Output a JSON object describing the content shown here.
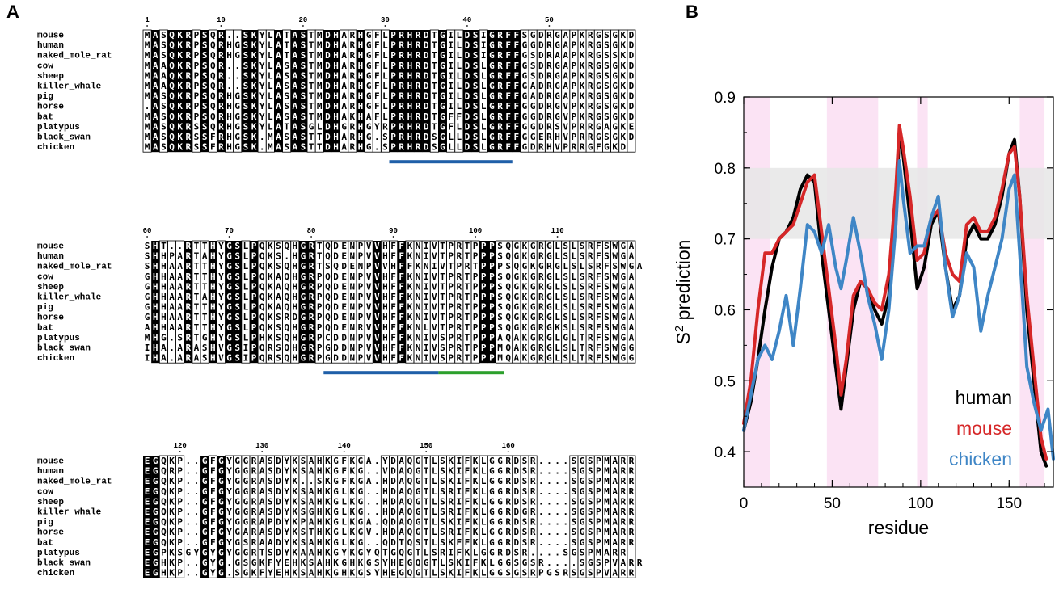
{
  "panel_a_label": "A",
  "panel_b_label": "B",
  "species": [
    "mouse",
    "human",
    "naked_mole_rat",
    "cow",
    "sheep",
    "killer_whale",
    "pig",
    "horse",
    "bat",
    "platypus",
    "black_swan",
    "chicken"
  ],
  "blocks": [
    {
      "ruler": [
        {
          "col": 0,
          "label": "1"
        },
        {
          "col": 9,
          "label": "10"
        },
        {
          "col": 19,
          "label": "20"
        },
        {
          "col": 29,
          "label": "30"
        },
        {
          "col": 39,
          "label": "40"
        },
        {
          "col": 49,
          "label": "50"
        }
      ],
      "rows": [
        "MASQKRPSQR..SKYLATASTMDHARHGFLPRHRDTGILDSIGRFFSGDRGAPKRGSGKD",
        "MASQKRPSQRHGSKYLATASTMDHARHGFLPRHRDTGILDSIGRFFGGDRGAPKRGSGKD",
        "MASQKRPSQRHGSKYLATASTMDHARHGFLPRHRDTGILDSIGRFFGSDRAAPKRGSSKD",
        "MAAQKRPSQR..SKYLASASTMDHARHGFLPRHRDTGILDSLGRFFGSDRGAPKRGSGKD",
        "MAAQKRPSQR..SKYLASASTMDHARHGFLPRHRDTGILDSLGRFFGSDRGAPKRGSGKD",
        "MAAQKRPSQR..SKYLASASTMDHARHGFLPRHRDTGILDSLGRFFGADRGAPKRGSGKD",
        "MASQKRPSQRHGSKYLASASTMDHARHGFLPRHRDTGILDSLGRFFGADRGAPKRGSGKD",
        ".ASQKRPSQRHGSKYLASASTMDHARHGFLPRHRDTGILDSLGRFFGGDRGVPKRGSGKD",
        "MASQKRPSQRHGSKYLASASTMDHAKHAFLPRHRDTGFFDSLGRFFGGDRGVPKRGSGKD",
        "MASQKRSSQRHGSKYLATASGLDHGRHGYRPRHRDTGFLDSLGRFFGGDRSVPRRGAGKE",
        "MASQKRSSFRHGSK.MASASTTDHARHG.SPRHRDSGLLDSLGRFFGGERHVPRRGSGKD",
        "MASQKRSSFRHGSK.MASASTTDHARHG.SPRHRDSGLLDSLGRFFGDRHVPRRGFGKD"
      ],
      "bars": [
        {
          "start": 30,
          "end": 44,
          "color": "#1f5fa8"
        }
      ]
    },
    {
      "ruler": [
        {
          "col": 0,
          "label": "60"
        },
        {
          "col": 10,
          "label": "70"
        },
        {
          "col": 20,
          "label": "80"
        },
        {
          "col": 30,
          "label": "90"
        },
        {
          "col": 40,
          "label": "100"
        },
        {
          "col": 50,
          "label": "110"
        }
      ],
      "rows": [
        "SHT..RTTHYGSLPQKSQHGRTQDENPVVHFFKNIVTPRTPPPSQGKGRGLSLSRFSWGA",
        "SHHPARTAHYGSLPQKS.HGRTQDENPVVHFFKNIVTPRTPPPSQGKGRGLSLSRFSWGA",
        "SHHAARTTHYGSLPQKSQHGRTSQDENPVVHFFKNIVTPRTPPPSQGKGRGLSLSRFSWGA",
        "GHHAARTTHYGSLPQKAQHGRPQDENPVVHFFKNIVTPRTPPPSQGKGRGLSLSRFSWGA",
        "GHHAARTTHYGSLPQKAQHGRPQDENPVVHFFKNIVTPRTPPPSQGKGRGLSLSRFSWGA",
        "GHHAARTAHYGSLPQKAQHGRPQDENPVVHFFKNIVTPRTPPPSQGKGRGLSLSRFSWGA",
        "GHHAARTTHYGSLPQKAQHGRPQDENPVVHFFKNIVTPRTPPPSQGKGRGLSLSRFSWGA",
        "GHHAARTTHYGSLPQKSRDGRPQDENPVVHFFKNIVTPRTPPPSQGKGRGLSLSRFSWGA",
        "AHHAARTTHYGSLPQKSQHGRPQDENRVVHFFKNLVTPRTPPPSQGKGRGKSLSRFSWGA",
        "MHG.SRTGHYGSLPHKSQHGRPCDDNPVVHFFKNIVSPRTPPPAQAKGRGLGLTRFSWGA",
        "IHA.ARASHVGSIPQRSQHGRPGDDNPVVHFFKNIVSPRTPPPMQAKGRGLSLTRFSWGG",
        "IHA.ARASHVGSIPQRSQHGRPGDDNPVVHFFKNIVSPRTPPPMQAKGRGLSLTRFSWGG"
      ],
      "bars": [
        {
          "start": 22,
          "end": 35,
          "color": "#1f5fa8"
        },
        {
          "start": 36,
          "end": 43,
          "color": "#2ca02c"
        }
      ]
    },
    {
      "ruler": [
        {
          "col": 4,
          "label": "120"
        },
        {
          "col": 14,
          "label": "130"
        },
        {
          "col": 24,
          "label": "140"
        },
        {
          "col": 34,
          "label": "150"
        },
        {
          "col": 44,
          "label": "160"
        }
      ],
      "rows": [
        "EGQKP..GFGYGGRASDYKSAHKGFKGA.YDAQGTLSKIFKLGGRDSR....SGSPMARR",
        "EGQRP..GFGYGGRASDYKSAHKGFKG..VDAQGTLSKIFKLGGRDSR....SGSPMARR",
        "EGQKP..GFGYGGRASDYK..SKGFKGA.HDAQGTLSKIFKLGGRDSR....SGSPMARR",
        "EGQKP..GFGYGGRASDYKSAHKGLKG..HDAQGTLSRIFKLGGRDSR....SGSPMARR",
        "EGQKP..GFGYGGRASDYKSAHKGLKG..HDAQGTLSRIFKLGGRDSR....SGSPMARR",
        "EGQKP..GFGYGGRASDYKSGHKGLKG..HDAQGTLSRIFKLGGRDGR....SGSPMARR",
        "EGQKP..GFGYGGRAPDYKPAHKGLKGA.QDAQGTLSKIFKLGGRDSR....SGSPMARR",
        "EGQKP..GFGYGARASDYKSTHKGLKGV.HDAQGTLSRIFKLGGRDSR....SGSPMARR",
        "EGQKP..GFGYGSRAADYKSAHKGLKG..QDTQSTLSKFFKLGGRDSR....SGSPMARR",
        "EGPKSGYGYGYGGRTSDYKAAHKGYKGYQTGQGTLSRIFKLGGRDSR....SGSPMARR",
        "EGHKP..GYG.GSGKFYEHKSAHKGHKGSYHEGQGTLSKIFKLGGSGSR....SGSPVARR",
        "EGHKP..GYG.SGKFYEHKSAHKGHKGSYHEGQGTLSKIFKLGGSGSRPGSRSGSPVARR"
      ],
      "bars": []
    }
  ],
  "chart_data": {
    "type": "line",
    "title": "",
    "xlabel": "residue",
    "ylabel": "S² prediction",
    "ylabel_main": "S",
    "ylabel_sup": "2",
    "ylabel_rest": " prediction",
    "xlim": [
      0,
      175
    ],
    "ylim": [
      0.35,
      0.9
    ],
    "xticks": [
      0,
      50,
      100,
      150
    ],
    "xtick_labels": [
      "0",
      "50",
      "100",
      "150"
    ],
    "yticks": [
      0.4,
      0.5,
      0.6,
      0.7,
      0.8,
      0.9
    ],
    "ytick_labels": [
      "0.4",
      "0.5",
      "0.6",
      "0.7",
      "0.8",
      "0.9"
    ],
    "shaded_band": {
      "y0": 0.7,
      "y1": 0.8,
      "color": "#e6e6e6"
    },
    "highlight_regions": [
      [
        0,
        15
      ],
      [
        47,
        76
      ],
      [
        98,
        104
      ],
      [
        156,
        170
      ]
    ],
    "highlight_color": "#fbe3f4",
    "legend_position": "lower-right",
    "series": [
      {
        "name": "human",
        "color": "#000000",
        "x": [
          0,
          4,
          8,
          12,
          16,
          20,
          24,
          28,
          32,
          36,
          40,
          44,
          48,
          52,
          55,
          58,
          62,
          66,
          70,
          74,
          78,
          82,
          86,
          88,
          90,
          94,
          98,
          102,
          106,
          110,
          114,
          118,
          122,
          126,
          130,
          134,
          138,
          142,
          146,
          150,
          153,
          156,
          160,
          164,
          168,
          171
        ],
        "y": [
          0.43,
          0.47,
          0.53,
          0.6,
          0.66,
          0.7,
          0.71,
          0.73,
          0.77,
          0.79,
          0.78,
          0.68,
          0.6,
          0.52,
          0.46,
          0.52,
          0.6,
          0.64,
          0.63,
          0.6,
          0.58,
          0.62,
          0.74,
          0.85,
          0.82,
          0.73,
          0.63,
          0.66,
          0.72,
          0.74,
          0.66,
          0.6,
          0.62,
          0.7,
          0.72,
          0.7,
          0.7,
          0.72,
          0.76,
          0.82,
          0.84,
          0.76,
          0.6,
          0.5,
          0.4,
          0.38
        ]
      },
      {
        "name": "mouse",
        "color": "#d62728",
        "x": [
          0,
          4,
          8,
          12,
          16,
          20,
          24,
          28,
          32,
          36,
          40,
          44,
          48,
          52,
          55,
          58,
          62,
          66,
          70,
          74,
          78,
          82,
          86,
          88,
          90,
          94,
          98,
          102,
          106,
          110,
          114,
          118,
          122,
          126,
          130,
          134,
          138,
          142,
          146,
          150,
          153,
          156,
          160,
          164,
          168,
          171
        ],
        "y": [
          0.44,
          0.5,
          0.6,
          0.68,
          0.68,
          0.7,
          0.71,
          0.72,
          0.75,
          0.78,
          0.79,
          0.71,
          0.63,
          0.55,
          0.48,
          0.53,
          0.62,
          0.64,
          0.63,
          0.61,
          0.6,
          0.65,
          0.77,
          0.86,
          0.83,
          0.76,
          0.67,
          0.68,
          0.73,
          0.74,
          0.68,
          0.65,
          0.64,
          0.72,
          0.73,
          0.71,
          0.71,
          0.73,
          0.77,
          0.82,
          0.83,
          0.76,
          0.62,
          0.52,
          0.42,
          0.39
        ]
      },
      {
        "name": "chicken",
        "color": "#3f86c6",
        "x": [
          0,
          4,
          8,
          12,
          16,
          20,
          24,
          28,
          32,
          36,
          40,
          44,
          48,
          52,
          55,
          58,
          62,
          66,
          70,
          74,
          78,
          82,
          86,
          88,
          90,
          94,
          98,
          102,
          106,
          110,
          114,
          118,
          122,
          126,
          130,
          134,
          138,
          142,
          146,
          150,
          153,
          156,
          160,
          164,
          168,
          172,
          175
        ],
        "y": [
          0.43,
          0.48,
          0.53,
          0.55,
          0.53,
          0.57,
          0.62,
          0.55,
          0.63,
          0.72,
          0.71,
          0.68,
          0.72,
          0.66,
          0.63,
          0.67,
          0.73,
          0.68,
          0.62,
          0.58,
          0.53,
          0.6,
          0.72,
          0.81,
          0.76,
          0.68,
          0.69,
          0.69,
          0.73,
          0.76,
          0.66,
          0.59,
          0.62,
          0.68,
          0.66,
          0.57,
          0.62,
          0.66,
          0.7,
          0.77,
          0.79,
          0.68,
          0.52,
          0.47,
          0.43,
          0.46,
          0.39
        ]
      }
    ]
  }
}
